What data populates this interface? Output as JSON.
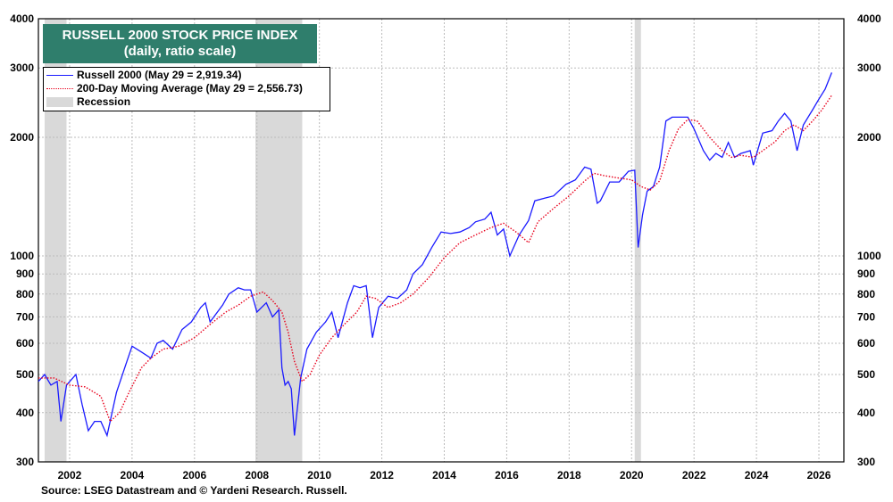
{
  "title": {
    "line1": "RUSSELL 2000 STOCK PRICE INDEX",
    "line2": "(daily, ratio scale)"
  },
  "legend": {
    "series1": "Russell 2000 (May 29 = 2,919.34)",
    "series2": "200-Day Moving Average (May 29 = 2,556.73)",
    "recession": "Recession"
  },
  "source": "Source: LSEG Datastream and © Yardeni Research. Russell.",
  "colors": {
    "index": "#1a1aff",
    "ma": "#e8001c",
    "recession": "#d9d9d9",
    "title_bg": "#2f7e6c"
  },
  "chart_data": {
    "type": "line",
    "yscale": "log",
    "ylim": [
      300,
      4000
    ],
    "xlim": [
      2001.0,
      2026.8
    ],
    "x_ticks": [
      "2002",
      "2004",
      "2006",
      "2008",
      "2010",
      "2012",
      "2014",
      "2016",
      "2018",
      "2020",
      "2022",
      "2024",
      "2026"
    ],
    "y_ticks": [
      300,
      400,
      500,
      600,
      700,
      800,
      900,
      1000,
      2000,
      3000,
      4000
    ],
    "grid": true,
    "recessions": [
      [
        2001.2,
        2001.9
      ],
      [
        2007.95,
        2009.45
      ],
      [
        2020.1,
        2020.3
      ]
    ],
    "series": [
      {
        "name": "Russell 2000 (May 29 = 2,919.34)",
        "x": [
          2001.0,
          2001.2,
          2001.4,
          2001.6,
          2001.72,
          2001.9,
          2002.2,
          2002.4,
          2002.6,
          2002.8,
          2003.0,
          2003.2,
          2003.5,
          2003.8,
          2004.0,
          2004.3,
          2004.6,
          2004.8,
          2005.0,
          2005.3,
          2005.6,
          2005.9,
          2006.2,
          2006.35,
          2006.5,
          2006.9,
          2007.1,
          2007.4,
          2007.6,
          2007.8,
          2008.0,
          2008.3,
          2008.5,
          2008.7,
          2008.8,
          2008.9,
          2009.0,
          2009.1,
          2009.2,
          2009.4,
          2009.6,
          2009.9,
          2010.2,
          2010.4,
          2010.6,
          2010.9,
          2011.1,
          2011.3,
          2011.5,
          2011.7,
          2011.9,
          2012.2,
          2012.5,
          2012.8,
          2013.0,
          2013.3,
          2013.6,
          2013.9,
          2014.2,
          2014.5,
          2014.8,
          2015.0,
          2015.3,
          2015.5,
          2015.7,
          2015.9,
          2016.1,
          2016.4,
          2016.7,
          2016.9,
          2017.2,
          2017.5,
          2017.9,
          2018.2,
          2018.5,
          2018.7,
          2018.9,
          2019.0,
          2019.3,
          2019.6,
          2019.9,
          2020.1,
          2020.21,
          2020.35,
          2020.5,
          2020.7,
          2020.9,
          2021.1,
          2021.3,
          2021.6,
          2021.8,
          2022.0,
          2022.3,
          2022.5,
          2022.7,
          2022.9,
          2023.1,
          2023.3,
          2023.5,
          2023.8,
          2023.9,
          2024.2,
          2024.5,
          2024.7,
          2024.9,
          2025.1,
          2025.3,
          2025.5,
          2025.8,
          2026.0,
          2026.2,
          2026.41
        ],
        "y": [
          480,
          500,
          470,
          480,
          380,
          470,
          500,
          420,
          360,
          380,
          380,
          350,
          450,
          530,
          590,
          570,
          550,
          600,
          610,
          580,
          650,
          680,
          740,
          760,
          680,
          750,
          800,
          830,
          820,
          820,
          720,
          760,
          700,
          730,
          520,
          470,
          480,
          460,
          350,
          490,
          580,
          640,
          680,
          720,
          620,
          760,
          840,
          830,
          840,
          620,
          740,
          790,
          780,
          820,
          900,
          950,
          1050,
          1150,
          1140,
          1150,
          1180,
          1220,
          1240,
          1290,
          1130,
          1170,
          1000,
          1130,
          1230,
          1380,
          1400,
          1420,
          1520,
          1560,
          1680,
          1660,
          1360,
          1380,
          1540,
          1540,
          1640,
          1650,
          1050,
          1270,
          1460,
          1500,
          1680,
          2200,
          2250,
          2250,
          2250,
          2100,
          1850,
          1750,
          1820,
          1780,
          1940,
          1780,
          1820,
          1850,
          1700,
          2050,
          2080,
          2200,
          2300,
          2200,
          1850,
          2150,
          2350,
          2500,
          2650,
          2919
        ]
      },
      {
        "name": "200-Day Moving Average (May 29 = 2,556.73)",
        "x": [
          2001.0,
          2001.5,
          2002.0,
          2002.5,
          2003.0,
          2003.3,
          2003.6,
          2003.9,
          2004.3,
          2004.6,
          2005.0,
          2005.5,
          2006.0,
          2006.5,
          2007.0,
          2007.4,
          2007.8,
          2008.2,
          2008.5,
          2008.8,
          2009.0,
          2009.2,
          2009.45,
          2009.7,
          2010.0,
          2010.4,
          2010.8,
          2011.2,
          2011.5,
          2011.8,
          2012.2,
          2012.6,
          2013.0,
          2013.5,
          2014.0,
          2014.5,
          2015.0,
          2015.5,
          2015.9,
          2016.3,
          2016.7,
          2017.0,
          2017.5,
          2018.0,
          2018.5,
          2018.8,
          2019.1,
          2019.5,
          2020.0,
          2020.3,
          2020.6,
          2020.9,
          2021.2,
          2021.5,
          2021.8,
          2022.1,
          2022.5,
          2022.9,
          2023.2,
          2023.5,
          2023.9,
          2024.2,
          2024.6,
          2024.9,
          2025.2,
          2025.5,
          2025.8,
          2026.1,
          2026.41
        ],
        "y": [
          490,
          490,
          470,
          465,
          440,
          380,
          400,
          450,
          520,
          550,
          580,
          590,
          620,
          670,
          720,
          750,
          790,
          810,
          770,
          720,
          640,
          540,
          480,
          500,
          560,
          620,
          670,
          720,
          790,
          780,
          740,
          760,
          800,
          880,
          990,
          1080,
          1130,
          1180,
          1210,
          1150,
          1080,
          1220,
          1320,
          1420,
          1550,
          1620,
          1600,
          1580,
          1560,
          1500,
          1470,
          1550,
          1850,
          2100,
          2220,
          2200,
          2000,
          1850,
          1780,
          1800,
          1780,
          1850,
          1950,
          2080,
          2150,
          2080,
          2200,
          2350,
          2557
        ]
      }
    ]
  }
}
